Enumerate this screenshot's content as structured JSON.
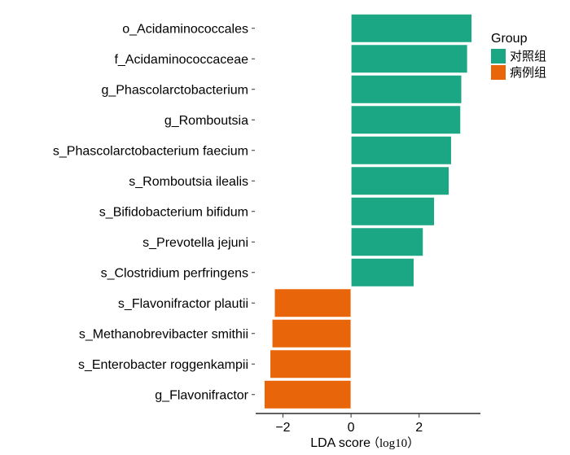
{
  "chart_data": {
    "type": "bar",
    "orientation": "horizontal",
    "categories": [
      "o_Acidaminococcales",
      "f_Acidaminococcaceae",
      "g_Phascolarctobacterium",
      "g_Romboutsia",
      "s_Phascolarctobacterium faecium",
      "s_Romboutsia ilealis",
      "s_Bifidobacterium bifidum",
      "s_Prevotella jejuni",
      "s_Clostridium perfringens",
      "s_Flavonifractor plautii",
      "s_Methanobrevibacter smithii",
      "s_Enterobacter roggenkampii",
      "g_Flavonifractor"
    ],
    "values": [
      3.55,
      3.42,
      3.25,
      3.22,
      2.95,
      2.88,
      2.45,
      2.12,
      1.85,
      -2.25,
      -2.32,
      -2.38,
      -2.55
    ],
    "groups": [
      "对照组",
      "对照组",
      "对照组",
      "对照组",
      "对照组",
      "对照组",
      "对照组",
      "对照组",
      "对照组",
      "病例组",
      "病例组",
      "病例组",
      "病例组"
    ],
    "xlabel": "LDA score",
    "xlabel_unit": "（log10）",
    "xlim": [
      -2.8,
      3.8
    ],
    "xticks": [
      -2,
      0,
      2
    ],
    "xtick_labels": [
      "−2",
      "0",
      "2"
    ],
    "grid": false,
    "legend": {
      "title": "Group",
      "placement": "top-right",
      "entries": [
        {
          "name": "对照组",
          "color": "#1BA784"
        },
        {
          "name": "病例组",
          "color": "#E8650A"
        }
      ]
    }
  }
}
